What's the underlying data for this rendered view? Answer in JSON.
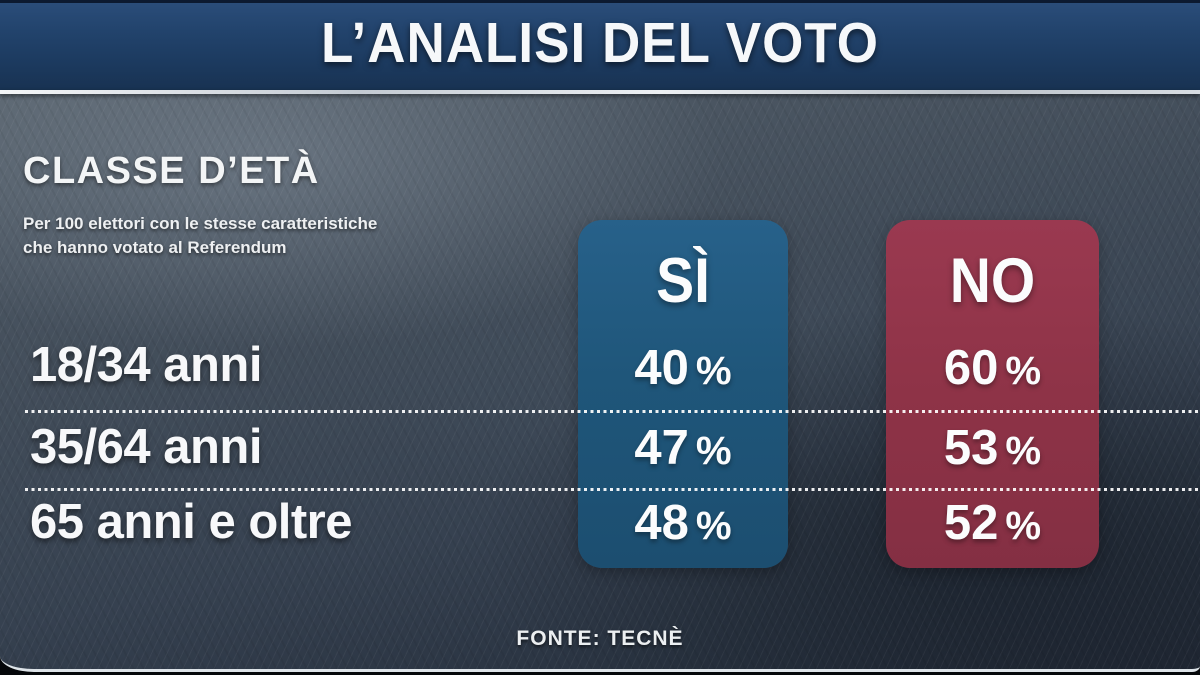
{
  "header": {
    "title": "L’ANALISI DEL VOTO"
  },
  "chart_data": {
    "type": "table",
    "title": "CLASSE D’ETÀ",
    "subtitle_lines": [
      "Per 100 elettori con le stesse caratteristiche",
      "che hanno votato al Referendum"
    ],
    "categories": [
      "18/34 anni",
      "35/64 anni",
      "65 anni e oltre"
    ],
    "series": [
      {
        "name": "SÌ",
        "values": [
          40,
          47,
          48
        ]
      },
      {
        "name": "NO",
        "values": [
          60,
          53,
          52
        ]
      }
    ],
    "unit": "%",
    "source": "FONTE: TECNÈ",
    "legend_position": "column-headers-top",
    "row_separators": "dotted",
    "axis": "none"
  },
  "colors": {
    "si_panel": "#1f567a",
    "no_panel": "#8e3347",
    "header_band": "#1c3a5f",
    "background": "#414c59",
    "text": "#ffffff"
  }
}
